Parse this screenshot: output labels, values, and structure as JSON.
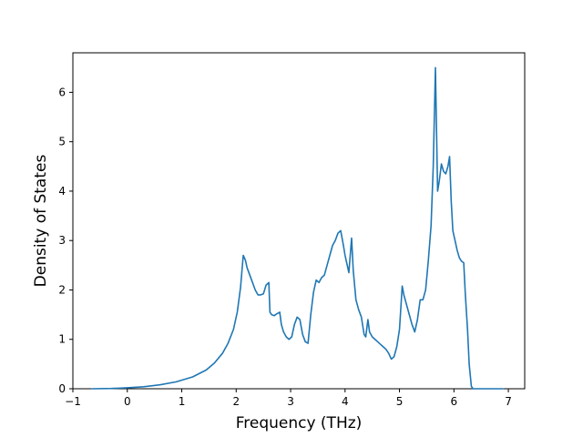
{
  "chart_data": {
    "type": "line",
    "title": "",
    "xlabel": "Frequency (THz)",
    "ylabel": "Density of States",
    "xlim": [
      -1,
      7.3
    ],
    "ylim": [
      0,
      6.8
    ],
    "xticks": [
      -1,
      0,
      1,
      2,
      3,
      4,
      5,
      6,
      7
    ],
    "yticks": [
      0,
      1,
      2,
      3,
      4,
      5,
      6
    ],
    "grid": false,
    "legend": "none",
    "series": [
      {
        "color": "#1f77b4",
        "x": [
          -0.65,
          -0.3,
          0.0,
          0.3,
          0.6,
          0.9,
          1.2,
          1.45,
          1.6,
          1.75,
          1.85,
          1.95,
          2.02,
          2.08,
          2.13,
          2.17,
          2.2,
          2.25,
          2.3,
          2.35,
          2.4,
          2.45,
          2.5,
          2.55,
          2.6,
          2.62,
          2.65,
          2.7,
          2.75,
          2.8,
          2.83,
          2.87,
          2.92,
          2.97,
          3.02,
          3.07,
          3.12,
          3.17,
          3.22,
          3.27,
          3.32,
          3.37,
          3.42,
          3.47,
          3.52,
          3.57,
          3.62,
          3.67,
          3.72,
          3.77,
          3.82,
          3.87,
          3.92,
          3.97,
          4.0,
          4.02,
          4.07,
          4.12,
          4.15,
          4.2,
          4.25,
          4.3,
          4.35,
          4.38,
          4.42,
          4.45,
          4.5,
          4.55,
          4.6,
          4.65,
          4.7,
          4.75,
          4.8,
          4.85,
          4.9,
          4.95,
          5.0,
          5.05,
          5.08,
          5.13,
          5.18,
          5.23,
          5.28,
          5.33,
          5.38,
          5.43,
          5.48,
          5.53,
          5.58,
          5.62,
          5.66,
          5.7,
          5.73,
          5.77,
          5.81,
          5.85,
          5.89,
          5.92,
          5.95,
          5.98,
          6.02,
          6.06,
          6.1,
          6.14,
          6.18,
          6.21,
          6.25,
          6.28,
          6.32,
          6.35,
          6.45,
          6.9
        ],
        "y": [
          0.0,
          0.005,
          0.02,
          0.04,
          0.08,
          0.14,
          0.24,
          0.38,
          0.52,
          0.72,
          0.92,
          1.2,
          1.55,
          2.05,
          2.7,
          2.6,
          2.45,
          2.3,
          2.15,
          2.0,
          1.9,
          1.9,
          1.92,
          2.1,
          2.15,
          1.55,
          1.5,
          1.48,
          1.52,
          1.55,
          1.3,
          1.15,
          1.05,
          1.0,
          1.05,
          1.3,
          1.45,
          1.4,
          1.1,
          0.95,
          0.92,
          1.5,
          1.95,
          2.2,
          2.15,
          2.25,
          2.3,
          2.5,
          2.7,
          2.9,
          3.0,
          3.15,
          3.2,
          2.9,
          2.7,
          2.6,
          2.35,
          3.05,
          2.4,
          1.8,
          1.6,
          1.45,
          1.1,
          1.05,
          1.4,
          1.15,
          1.05,
          1.0,
          0.95,
          0.9,
          0.85,
          0.8,
          0.72,
          0.6,
          0.65,
          0.85,
          1.2,
          2.08,
          1.9,
          1.7,
          1.5,
          1.3,
          1.15,
          1.4,
          1.8,
          1.8,
          2.0,
          2.6,
          3.3,
          4.5,
          6.5,
          4.0,
          4.2,
          4.55,
          4.4,
          4.35,
          4.5,
          4.7,
          3.8,
          3.2,
          3.0,
          2.8,
          2.65,
          2.58,
          2.55,
          1.9,
          1.2,
          0.5,
          0.05,
          0.0,
          0.0,
          0.0
        ]
      }
    ]
  }
}
